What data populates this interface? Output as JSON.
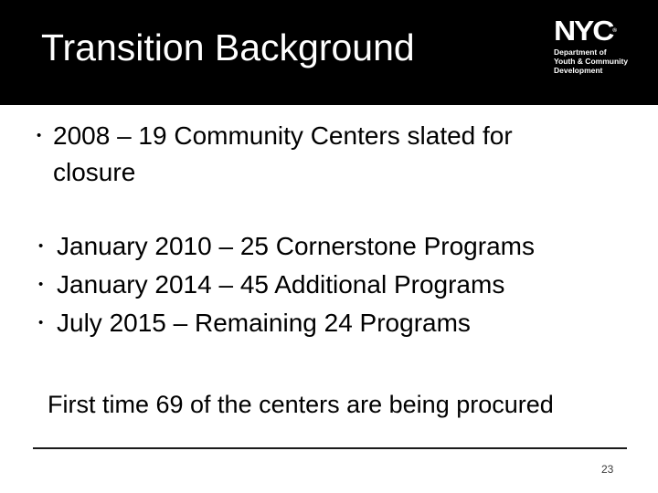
{
  "slide": {
    "title": "Transition Background",
    "page_number": "23"
  },
  "logo": {
    "nyc": "NYC",
    "registered": "®",
    "lines": [
      "Department of",
      "Youth & Community",
      "Development"
    ]
  },
  "bullet_char": "•",
  "bullets": [
    {
      "text": "2008 – 19 Community Centers slated for closure"
    },
    {
      "text": "January 2010 – 25 Cornerstone Programs"
    },
    {
      "text": "January 2014 – 45 Additional Programs"
    },
    {
      "text": "July 2015 – Remaining 24 Programs"
    }
  ],
  "statement": "First time 69 of the centers are being procured",
  "colors": {
    "header_bg": "#000000",
    "title_text": "#ffffff",
    "body_text": "#000000"
  }
}
